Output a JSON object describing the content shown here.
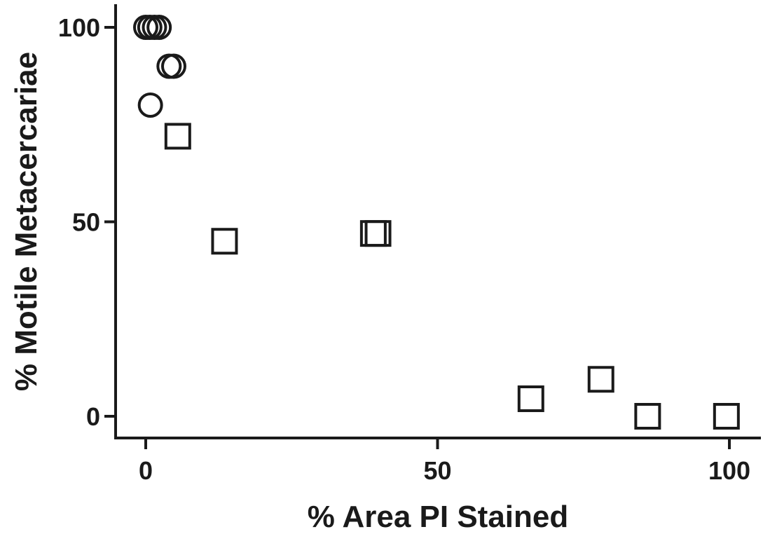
{
  "chart_data": {
    "type": "scatter",
    "title": "",
    "xlabel": "% Area PI Stained",
    "ylabel": "% Motile Metacercariae",
    "xlim": [
      -5,
      105
    ],
    "ylim": [
      -5,
      105
    ],
    "x_ticks": [
      0,
      50,
      100
    ],
    "y_ticks": [
      0,
      50,
      100
    ],
    "x_tick_labels": [
      "0",
      "50",
      "100"
    ],
    "y_tick_labels": [
      "0",
      "50",
      "100"
    ],
    "grid": false,
    "legend": "none",
    "marker_color": "#1a1a1a",
    "series": [
      {
        "marker": "circle",
        "points": [
          {
            "x": 0.0,
            "y": 100
          },
          {
            "x": 0.7,
            "y": 100
          },
          {
            "x": 1.5,
            "y": 100
          },
          {
            "x": 2.3,
            "y": 100
          },
          {
            "x": 4.0,
            "y": 90
          },
          {
            "x": 4.8,
            "y": 90
          },
          {
            "x": 0.8,
            "y": 80
          }
        ]
      },
      {
        "marker": "square",
        "points": [
          {
            "x": 5.5,
            "y": 72
          },
          {
            "x": 13.5,
            "y": 45
          },
          {
            "x": 39.0,
            "y": 47
          },
          {
            "x": 39.8,
            "y": 47
          },
          {
            "x": 66.0,
            "y": 4.5
          },
          {
            "x": 78.0,
            "y": 9.5
          },
          {
            "x": 86.0,
            "y": 0
          },
          {
            "x": 99.5,
            "y": 0
          }
        ]
      }
    ]
  }
}
